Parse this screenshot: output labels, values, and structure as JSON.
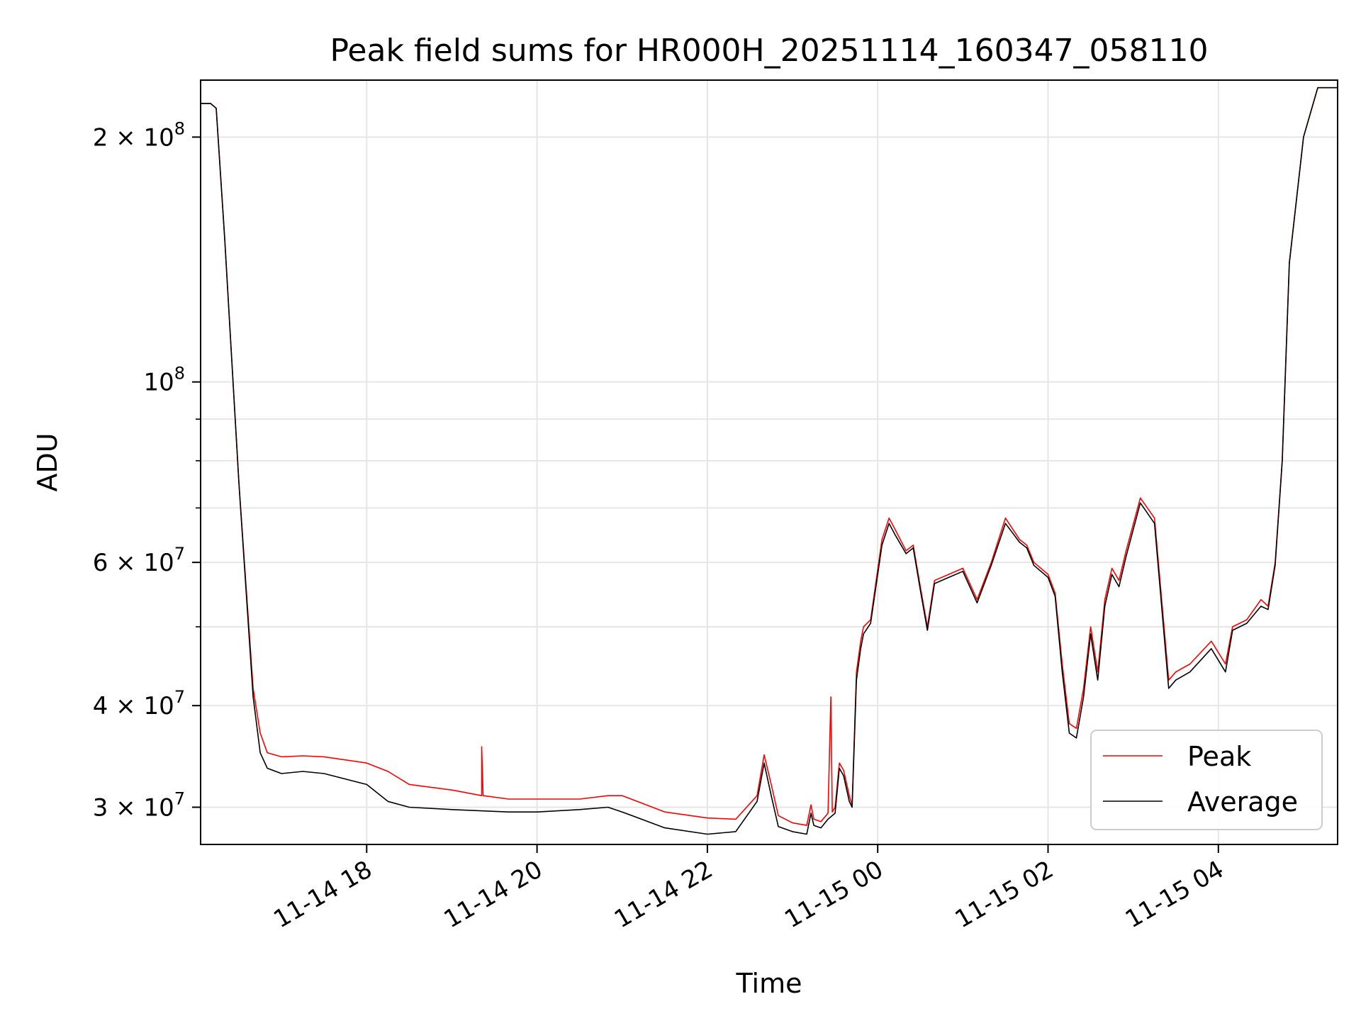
{
  "chart_data": {
    "type": "line",
    "title": "Peak field sums for HR000H_20251114_160347_058110",
    "xlabel": "Time",
    "ylabel": "ADU",
    "yscale": "log",
    "grid": true,
    "legend_position": "lower-right",
    "xlim": [
      "2025-11-14 16:03",
      "2025-11-15 05:24"
    ],
    "ylim": [
      27000000,
      235000000
    ],
    "x_ticks": [
      {
        "value": "2025-11-14 18:00",
        "label": "11-14 18"
      },
      {
        "value": "2025-11-14 20:00",
        "label": "11-14 20"
      },
      {
        "value": "2025-11-14 22:00",
        "label": "11-14 22"
      },
      {
        "value": "2025-11-15 00:00",
        "label": "11-15 00"
      },
      {
        "value": "2025-11-15 02:00",
        "label": "11-15 02"
      },
      {
        "value": "2025-11-15 04:00",
        "label": "11-15 04"
      }
    ],
    "y_ticks": [
      {
        "value": 30000000,
        "base": "3 × 10",
        "exp": "7"
      },
      {
        "value": 40000000,
        "base": "4 × 10",
        "exp": "7"
      },
      {
        "value": 60000000,
        "base": "6 × 10",
        "exp": "7"
      },
      {
        "value": 100000000,
        "base": "10",
        "exp": "8"
      },
      {
        "value": 200000000,
        "base": "2 × 10",
        "exp": "8"
      }
    ],
    "y_minor_ticks": [
      50000000,
      70000000,
      80000000,
      90000000
    ],
    "series": [
      {
        "name": "Peak",
        "color": "#ff0000",
        "x": [
          "2025-11-14 16:03",
          "2025-11-14 16:10",
          "2025-11-14 16:14",
          "2025-11-14 16:20",
          "2025-11-14 16:30",
          "2025-11-14 16:40",
          "2025-11-14 16:45",
          "2025-11-14 16:50",
          "2025-11-14 17:00",
          "2025-11-14 17:15",
          "2025-11-14 17:30",
          "2025-11-14 18:00",
          "2025-11-14 18:15",
          "2025-11-14 18:30",
          "2025-11-14 19:00",
          "2025-11-14 19:21",
          "2025-11-14 19:21",
          "2025-11-14 19:22",
          "2025-11-14 19:22",
          "2025-11-14 19:40",
          "2025-11-14 20:00",
          "2025-11-14 20:30",
          "2025-11-14 20:50",
          "2025-11-14 21:00",
          "2025-11-14 21:30",
          "2025-11-14 22:00",
          "2025-11-14 22:20",
          "2025-11-14 22:35",
          "2025-11-14 22:40",
          "2025-11-14 22:45",
          "2025-11-14 22:50",
          "2025-11-14 23:00",
          "2025-11-14 23:10",
          "2025-11-14 23:13",
          "2025-11-14 23:15",
          "2025-11-14 23:20",
          "2025-11-14 23:25",
          "2025-11-14 23:27",
          "2025-11-14 23:28",
          "2025-11-14 23:30",
          "2025-11-14 23:33",
          "2025-11-14 23:36",
          "2025-11-14 23:40",
          "2025-11-14 23:42",
          "2025-11-14 23:45",
          "2025-11-14 23:48",
          "2025-11-14 23:50",
          "2025-11-14 23:55",
          "2025-11-15 00:03",
          "2025-11-15 00:08",
          "2025-11-15 00:12",
          "2025-11-15 00:20",
          "2025-11-15 00:25",
          "2025-11-15 00:30",
          "2025-11-15 00:35",
          "2025-11-15 00:40",
          "2025-11-15 00:50",
          "2025-11-15 01:00",
          "2025-11-15 01:10",
          "2025-11-15 01:20",
          "2025-11-15 01:30",
          "2025-11-15 01:40",
          "2025-11-15 01:45",
          "2025-11-15 01:50",
          "2025-11-15 02:00",
          "2025-11-15 02:05",
          "2025-11-15 02:10",
          "2025-11-15 02:15",
          "2025-11-15 02:20",
          "2025-11-15 02:25",
          "2025-11-15 02:30",
          "2025-11-15 02:35",
          "2025-11-15 02:40",
          "2025-11-15 02:45",
          "2025-11-15 02:50",
          "2025-11-15 02:55",
          "2025-11-15 03:05",
          "2025-11-15 03:15",
          "2025-11-15 03:25",
          "2025-11-15 03:30",
          "2025-11-15 03:40",
          "2025-11-15 03:55",
          "2025-11-15 04:05",
          "2025-11-15 04:10",
          "2025-11-15 04:20",
          "2025-11-15 04:30",
          "2025-11-15 04:35",
          "2025-11-15 04:40",
          "2025-11-15 04:45",
          "2025-11-15 04:50",
          "2025-11-15 05:00",
          "2025-11-15 05:10",
          "2025-11-15 05:20",
          "2025-11-15 05:24"
        ],
        "y": [
          220000000,
          220000000,
          217000000,
          150000000,
          75000000,
          42000000,
          37000000,
          35000000,
          34600000,
          34700000,
          34600000,
          34000000,
          33200000,
          32000000,
          31500000,
          31000000,
          35600000,
          31000000,
          31000000,
          30700000,
          30700000,
          30700000,
          31000000,
          31000000,
          29600000,
          29100000,
          29000000,
          31000000,
          34800000,
          32000000,
          29300000,
          28700000,
          28500000,
          30200000,
          29000000,
          28800000,
          29500000,
          41000000,
          29600000,
          30000000,
          34000000,
          33300000,
          31000000,
          30200000,
          44000000,
          48000000,
          50000000,
          51000000,
          64000000,
          68000000,
          66000000,
          62000000,
          63000000,
          56000000,
          50000000,
          57000000,
          58000000,
          59000000,
          54000000,
          60000000,
          68000000,
          64000000,
          63000000,
          60000000,
          58000000,
          55000000,
          45000000,
          38000000,
          37500000,
          42000000,
          50000000,
          44000000,
          54000000,
          59000000,
          57000000,
          62000000,
          72000000,
          68000000,
          43000000,
          44000000,
          45000000,
          48000000,
          45000000,
          50000000,
          51000000,
          54000000,
          53000000,
          60000000,
          80000000,
          140000000,
          200000000,
          230000000,
          230000000,
          230000000
        ]
      },
      {
        "name": "Average",
        "color": "#000000",
        "x": [
          "2025-11-14 16:03",
          "2025-11-14 16:10",
          "2025-11-14 16:14",
          "2025-11-14 16:20",
          "2025-11-14 16:30",
          "2025-11-14 16:40",
          "2025-11-14 16:45",
          "2025-11-14 16:50",
          "2025-11-14 17:00",
          "2025-11-14 17:15",
          "2025-11-14 17:30",
          "2025-11-14 18:00",
          "2025-11-14 18:15",
          "2025-11-14 18:30",
          "2025-11-14 19:00",
          "2025-11-14 19:40",
          "2025-11-14 20:00",
          "2025-11-14 20:30",
          "2025-11-14 20:50",
          "2025-11-14 21:00",
          "2025-11-14 21:30",
          "2025-11-14 22:00",
          "2025-11-14 22:20",
          "2025-11-14 22:35",
          "2025-11-14 22:40",
          "2025-11-14 22:45",
          "2025-11-14 22:50",
          "2025-11-14 23:00",
          "2025-11-14 23:10",
          "2025-11-14 23:13",
          "2025-11-14 23:15",
          "2025-11-14 23:20",
          "2025-11-14 23:25",
          "2025-11-14 23:30",
          "2025-11-14 23:33",
          "2025-11-14 23:36",
          "2025-11-14 23:40",
          "2025-11-14 23:42",
          "2025-11-14 23:45",
          "2025-11-14 23:48",
          "2025-11-14 23:50",
          "2025-11-14 23:55",
          "2025-11-15 00:03",
          "2025-11-15 00:08",
          "2025-11-15 00:12",
          "2025-11-15 00:20",
          "2025-11-15 00:25",
          "2025-11-15 00:30",
          "2025-11-15 00:35",
          "2025-11-15 00:40",
          "2025-11-15 00:50",
          "2025-11-15 01:00",
          "2025-11-15 01:10",
          "2025-11-15 01:20",
          "2025-11-15 01:30",
          "2025-11-15 01:40",
          "2025-11-15 01:45",
          "2025-11-15 01:50",
          "2025-11-15 02:00",
          "2025-11-15 02:05",
          "2025-11-15 02:10",
          "2025-11-15 02:15",
          "2025-11-15 02:20",
          "2025-11-15 02:25",
          "2025-11-15 02:30",
          "2025-11-15 02:35",
          "2025-11-15 02:40",
          "2025-11-15 02:45",
          "2025-11-15 02:50",
          "2025-11-15 02:55",
          "2025-11-15 03:05",
          "2025-11-15 03:15",
          "2025-11-15 03:25",
          "2025-11-15 03:30",
          "2025-11-15 03:40",
          "2025-11-15 03:55",
          "2025-11-15 04:05",
          "2025-11-15 04:10",
          "2025-11-15 04:20",
          "2025-11-15 04:30",
          "2025-11-15 04:35",
          "2025-11-15 04:40",
          "2025-11-15 04:45",
          "2025-11-15 04:50",
          "2025-11-15 05:00",
          "2025-11-15 05:10",
          "2025-11-15 05:20",
          "2025-11-15 05:24"
        ],
        "y": [
          220000000,
          220000000,
          217000000,
          150000000,
          75000000,
          41000000,
          35000000,
          33500000,
          33000000,
          33200000,
          33000000,
          32000000,
          30500000,
          30000000,
          29800000,
          29600000,
          29600000,
          29800000,
          30000000,
          29600000,
          28300000,
          27800000,
          28000000,
          30500000,
          34000000,
          31000000,
          28400000,
          28000000,
          27800000,
          29500000,
          28500000,
          28300000,
          29000000,
          29500000,
          33500000,
          32800000,
          30500000,
          30000000,
          43000000,
          47000000,
          49000000,
          50500000,
          63000000,
          67000000,
          65000000,
          61500000,
          62500000,
          55500000,
          49500000,
          56500000,
          57500000,
          58500000,
          53500000,
          59500000,
          67000000,
          63500000,
          62500000,
          59500000,
          57500000,
          54500000,
          44000000,
          37000000,
          36500000,
          41000000,
          49000000,
          43000000,
          53000000,
          58000000,
          56000000,
          61000000,
          71000000,
          67000000,
          42000000,
          43000000,
          44000000,
          47000000,
          44000000,
          49500000,
          50500000,
          53000000,
          52500000,
          59500000,
          80000000,
          140000000,
          200000000,
          230000000,
          230000000,
          230000000
        ]
      }
    ]
  }
}
